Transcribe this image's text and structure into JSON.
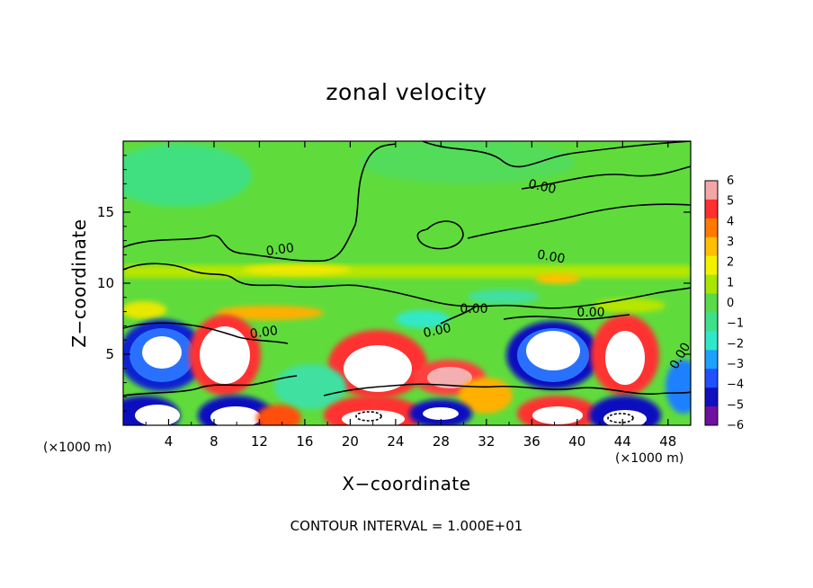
{
  "chart_data": {
    "type": "heatmap",
    "title": "zonal velocity",
    "xlabel": "X−coordinate",
    "ylabel": "Z−coordinate",
    "x_unit_label": "(×1000 m)",
    "xlim": [
      0,
      50
    ],
    "ylim": [
      0,
      20
    ],
    "x_ticks": [
      "4",
      "8",
      "12",
      "16",
      "20",
      "24",
      "28",
      "32",
      "36",
      "40",
      "44",
      "48"
    ],
    "y_ticks": [
      "5",
      "10",
      "15"
    ],
    "colorbar": {
      "levels": [
        "6",
        "5",
        "4",
        "3",
        "2",
        "1",
        "0",
        "−1",
        "−2",
        "−3",
        "−4",
        "−5",
        "−6"
      ],
      "colors": [
        "#f4a6a6",
        "#ff3030",
        "#ff7a00",
        "#ffc000",
        "#f2f200",
        "#a8e600",
        "#5ad94a",
        "#3fe08a",
        "#30e8c8",
        "#1ea0ff",
        "#2050ff",
        "#1010c0",
        "#7010a0"
      ]
    },
    "contour_labels": [
      "0.00",
      "0.00",
      "0.00",
      "0.00",
      "0.00",
      "0.00",
      "0.00",
      "0.00"
    ],
    "contour_interval": "CONTOUR INTERVAL = 1.000E+01",
    "grid": false,
    "legend": "colorbar-right"
  }
}
